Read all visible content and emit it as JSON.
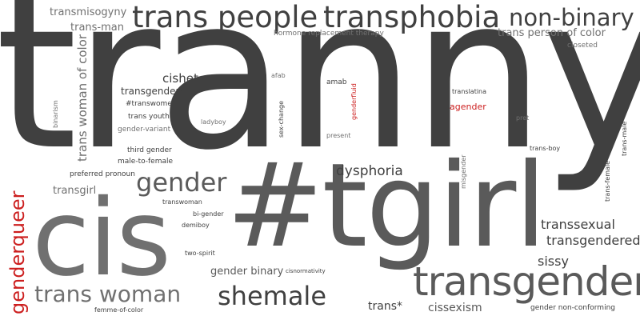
{
  "colors": {
    "dark": "#404040",
    "mid": "#5a5a5a",
    "light": "#707070",
    "accent": "#cc1f1f"
  },
  "words": {
    "tranny": "tranny",
    "tgirl": "#tgirl",
    "cis": "cis",
    "transgender": "transgender",
    "trans_people": "trans people",
    "transphobia": "transphobia",
    "non_binary": "non-binary",
    "genderqueer": "genderqueer",
    "trans_woman": "trans woman",
    "shemale": "shemale",
    "gender": "gender",
    "dysphoria": "dysphoria",
    "transsexual": "transsexual",
    "transgendered": "transgendered",
    "sissy": "sissy",
    "trans_woman_of_color": "trans woman of color",
    "transmisogyny": "transmisogyny",
    "trans_man": "trans-man",
    "trans_person_of_color": "trans person of color",
    "hormone_replacement_therapy": "hormone replacement therapy",
    "closeted": "closeted",
    "cishet": "cishet",
    "transgenders": "transgenders",
    "transwomen": "#transwomen",
    "trans_youth": "trans youth",
    "gender_variant": "gender-variant",
    "third_gender": "third gender",
    "male_to_female": "male-to-female",
    "preferred_pronoun": "preferred pronoun",
    "transgirl": "transgirl",
    "binarism": "binarism",
    "ladyboy": "ladyboy",
    "afab": "afab",
    "sex_change": "sex-change",
    "amab": "amab",
    "genderfluid": "genderfluid",
    "present": "present",
    "translatina": "translatina",
    "agender": "agender",
    "pret": "pret",
    "trans_boy": "trans-boy",
    "trans_male": "trans-male",
    "trans_female": "trans-female",
    "misgender": "misgender",
    "transwoman": "transwoman",
    "bi_gender": "bi-gender",
    "demiboy": "demiboy",
    "two_spirit": "two-spirit",
    "gender_binary": "gender binary",
    "cisnormativity": "cisnormativity",
    "femme_of_color": "femme-of-color",
    "trans_star": "trans*",
    "cissexism": "cissexism",
    "gender_non_conforming": "gender non-conforming"
  }
}
